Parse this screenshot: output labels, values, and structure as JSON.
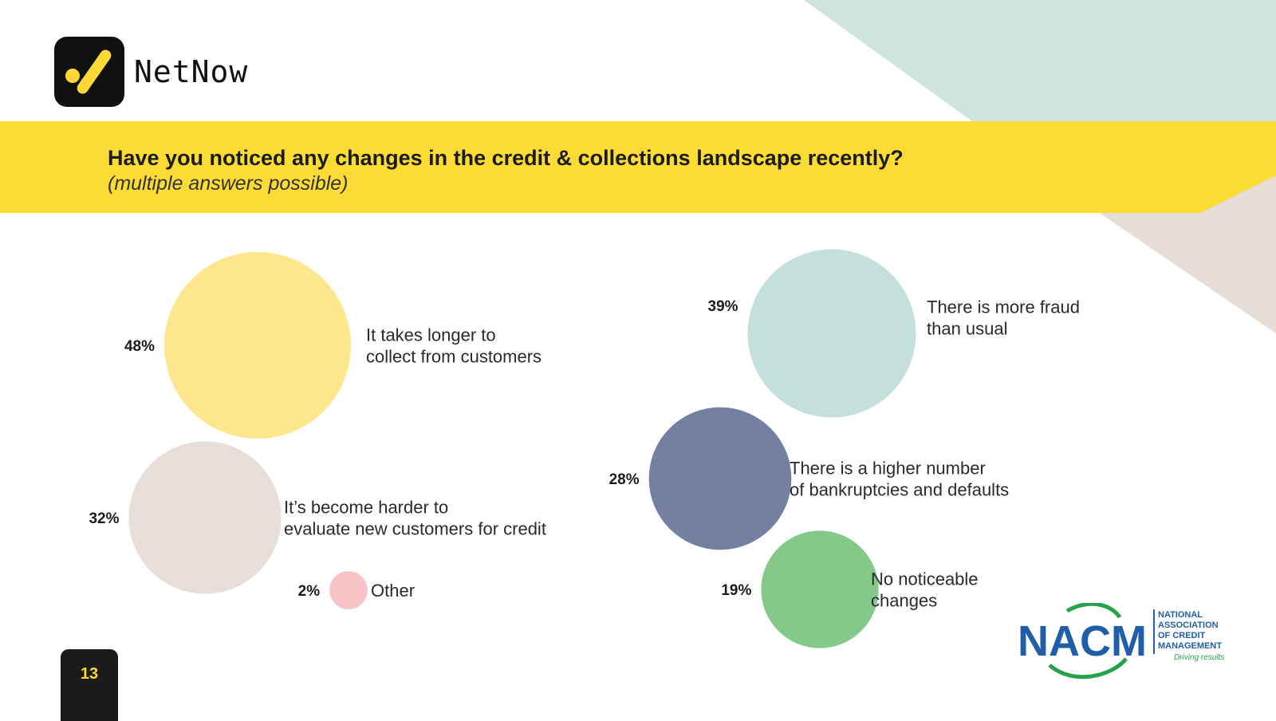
{
  "brand": {
    "name": "NetNow"
  },
  "header": {
    "title": "Have you noticed any changes in the credit & collections landscape recently?",
    "subtitle": "(multiple answers possible)"
  },
  "page": {
    "number": "13"
  },
  "nacm_logo": {
    "acronym": "NACM",
    "line1": "NATIONAL",
    "line2": "ASSOCIATION",
    "line3": "OF CREDIT",
    "line4": "MANAGEMENT",
    "tagline": "Driving results"
  },
  "colors": {
    "banner": "#fcdc34",
    "bg_teal": "#cfe3df",
    "bg_beige": "#e6ddd6"
  },
  "chart_data": {
    "type": "bubble",
    "unit": "%",
    "items": [
      {
        "label": "It takes longer to collect from customers",
        "lines": [
          "It takes longer to",
          "collect from customers"
        ],
        "value": 48,
        "display": "48%",
        "color": "#fde68c"
      },
      {
        "label": "It's become harder to evaluate new customers for credit",
        "lines": [
          "It’s become harder to",
          "evaluate new customers for credit"
        ],
        "value": 32,
        "display": "32%",
        "color": "#e7ded9"
      },
      {
        "label": "Other",
        "lines": [
          "Other"
        ],
        "value": 2,
        "display": "2%",
        "color": "#f9c3c7"
      },
      {
        "label": "There is more fraud than usual",
        "lines": [
          "There is more fraud",
          "than usual"
        ],
        "value": 39,
        "display": "39%",
        "color": "#c3e0dd"
      },
      {
        "label": "There is a higher number of bankruptcies and defaults",
        "lines": [
          "There is a higher number",
          "of bankruptcies and defaults"
        ],
        "value": 28,
        "display": "28%",
        "color": "#7480a2"
      },
      {
        "label": "No noticeable changes",
        "lines": [
          "No noticeable",
          "changes"
        ],
        "value": 19,
        "display": "19%",
        "color": "#84c98a"
      }
    ]
  }
}
